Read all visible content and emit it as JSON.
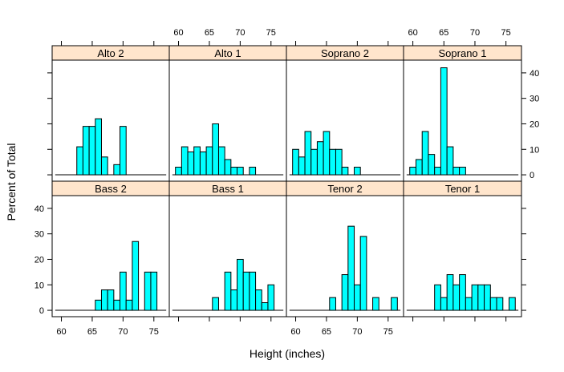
{
  "chart_data": {
    "type": "bar",
    "title": "",
    "xlabel": "Height (inches)",
    "ylabel": "Percent of Total",
    "xlim": [
      58.5,
      77.5
    ],
    "ylim": [
      -2.5,
      45
    ],
    "x_ticks": [
      60,
      65,
      70,
      75
    ],
    "y_ticks": [
      0,
      10,
      20,
      30,
      40
    ],
    "bin_width": 1,
    "colors": {
      "bar_fill": "#00ffff",
      "strip_fill": "#ffe5cc",
      "frame": "#000000"
    },
    "panels": [
      {
        "name": "Alto 2",
        "bins": [
          {
            "x": 63,
            "value": 11
          },
          {
            "x": 64,
            "value": 19
          },
          {
            "x": 65,
            "value": 19
          },
          {
            "x": 66,
            "value": 22
          },
          {
            "x": 67,
            "value": 7
          },
          {
            "x": 69,
            "value": 4
          },
          {
            "x": 70,
            "value": 19
          }
        ]
      },
      {
        "name": "Alto 1",
        "bins": [
          {
            "x": 60,
            "value": 3
          },
          {
            "x": 61,
            "value": 11
          },
          {
            "x": 62,
            "value": 9
          },
          {
            "x": 63,
            "value": 11
          },
          {
            "x": 64,
            "value": 9
          },
          {
            "x": 65,
            "value": 11
          },
          {
            "x": 66,
            "value": 20
          },
          {
            "x": 67,
            "value": 11
          },
          {
            "x": 68,
            "value": 6
          },
          {
            "x": 69,
            "value": 3
          },
          {
            "x": 70,
            "value": 3
          },
          {
            "x": 72,
            "value": 3
          }
        ]
      },
      {
        "name": "Soprano 2",
        "bins": [
          {
            "x": 60,
            "value": 10
          },
          {
            "x": 61,
            "value": 7
          },
          {
            "x": 62,
            "value": 17
          },
          {
            "x": 63,
            "value": 10
          },
          {
            "x": 64,
            "value": 13
          },
          {
            "x": 65,
            "value": 17
          },
          {
            "x": 66,
            "value": 10
          },
          {
            "x": 67,
            "value": 10
          },
          {
            "x": 68,
            "value": 3
          },
          {
            "x": 70,
            "value": 3
          }
        ]
      },
      {
        "name": "Soprano 1",
        "bins": [
          {
            "x": 60,
            "value": 3
          },
          {
            "x": 61,
            "value": 6
          },
          {
            "x": 62,
            "value": 17
          },
          {
            "x": 63,
            "value": 8
          },
          {
            "x": 64,
            "value": 3
          },
          {
            "x": 65,
            "value": 42
          },
          {
            "x": 66,
            "value": 11
          },
          {
            "x": 67,
            "value": 3
          },
          {
            "x": 68,
            "value": 3
          }
        ]
      },
      {
        "name": "Bass 2",
        "bins": [
          {
            "x": 66,
            "value": 4
          },
          {
            "x": 67,
            "value": 8
          },
          {
            "x": 68,
            "value": 8
          },
          {
            "x": 69,
            "value": 4
          },
          {
            "x": 70,
            "value": 15
          },
          {
            "x": 71,
            "value": 4
          },
          {
            "x": 72,
            "value": 27
          },
          {
            "x": 74,
            "value": 15
          },
          {
            "x": 75,
            "value": 15
          }
        ]
      },
      {
        "name": "Bass 1",
        "bins": [
          {
            "x": 66,
            "value": 5
          },
          {
            "x": 68,
            "value": 15
          },
          {
            "x": 69,
            "value": 8
          },
          {
            "x": 70,
            "value": 20
          },
          {
            "x": 71,
            "value": 15
          },
          {
            "x": 72,
            "value": 15
          },
          {
            "x": 73,
            "value": 8
          },
          {
            "x": 74,
            "value": 3
          },
          {
            "x": 75,
            "value": 10
          }
        ]
      },
      {
        "name": "Tenor 2",
        "bins": [
          {
            "x": 66,
            "value": 5
          },
          {
            "x": 68,
            "value": 14
          },
          {
            "x": 69,
            "value": 33
          },
          {
            "x": 70,
            "value": 10
          },
          {
            "x": 71,
            "value": 29
          },
          {
            "x": 73,
            "value": 5
          },
          {
            "x": 76,
            "value": 5
          }
        ]
      },
      {
        "name": "Tenor 1",
        "bins": [
          {
            "x": 64,
            "value": 10
          },
          {
            "x": 65,
            "value": 5
          },
          {
            "x": 66,
            "value": 14
          },
          {
            "x": 67,
            "value": 10
          },
          {
            "x": 68,
            "value": 14
          },
          {
            "x": 69,
            "value": 5
          },
          {
            "x": 70,
            "value": 10
          },
          {
            "x": 71,
            "value": 10
          },
          {
            "x": 72,
            "value": 10
          },
          {
            "x": 73,
            "value": 5
          },
          {
            "x": 74,
            "value": 5
          },
          {
            "x": 76,
            "value": 5
          }
        ]
      }
    ]
  }
}
